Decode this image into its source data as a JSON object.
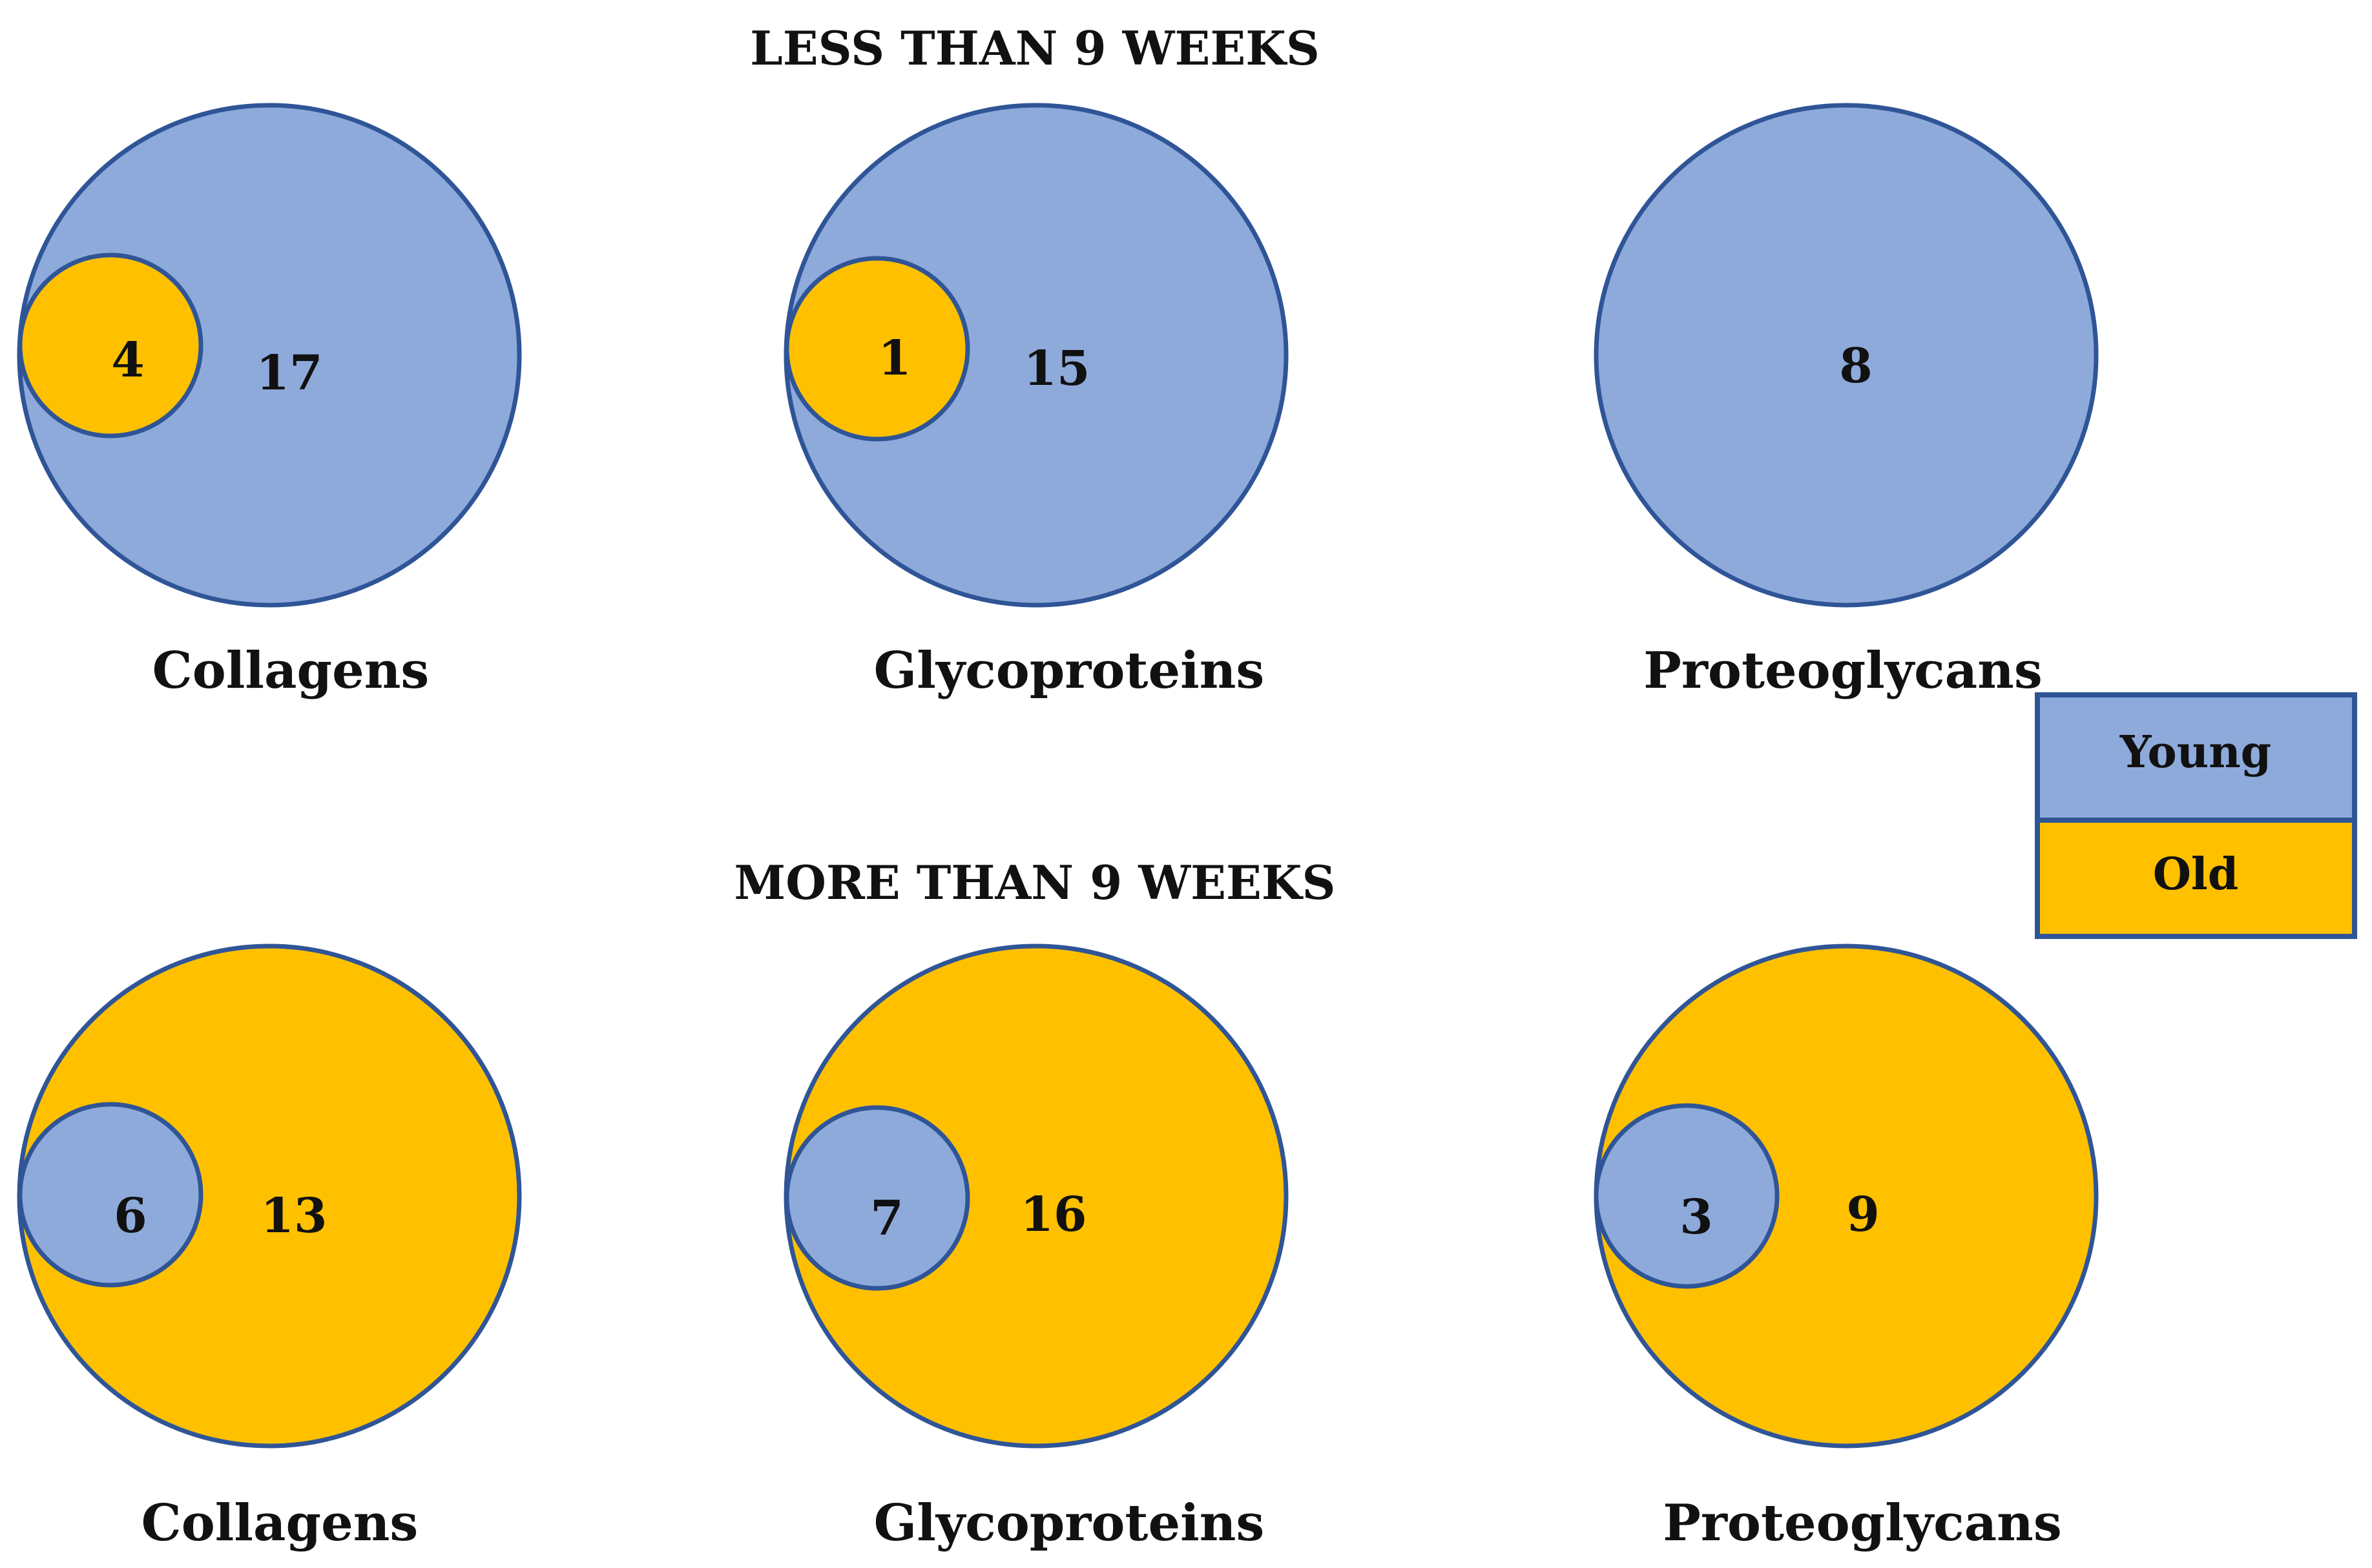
{
  "colors": {
    "young": "#8eaadb",
    "old": "#ffc000",
    "outline": "#2f5597"
  },
  "legend": {
    "young_label": "Young",
    "old_label": "Old"
  },
  "sections": [
    {
      "title": "LESS THAN 9 WEEKS",
      "panels": [
        {
          "label": "Collagens",
          "outer_group": "young",
          "outer_count": "17",
          "inner_group": "old",
          "inner_count": "4"
        },
        {
          "label": "Glycoproteins",
          "outer_group": "young",
          "outer_count": "15",
          "inner_group": "old",
          "inner_count": "1"
        },
        {
          "label": "Proteoglycans",
          "outer_group": "young",
          "outer_count": "8",
          "inner_group": null,
          "inner_count": null
        }
      ]
    },
    {
      "title": "MORE THAN 9 WEEKS",
      "panels": [
        {
          "label": "Collagens",
          "outer_group": "old",
          "outer_count": "13",
          "inner_group": "young",
          "inner_count": "6"
        },
        {
          "label": "Glycoproteins",
          "outer_group": "old",
          "outer_count": "16",
          "inner_group": "young",
          "inner_count": "7"
        },
        {
          "label": "Proteoglycans",
          "outer_group": "old",
          "outer_count": "9",
          "inner_group": "young",
          "inner_count": "3"
        }
      ]
    }
  ]
}
